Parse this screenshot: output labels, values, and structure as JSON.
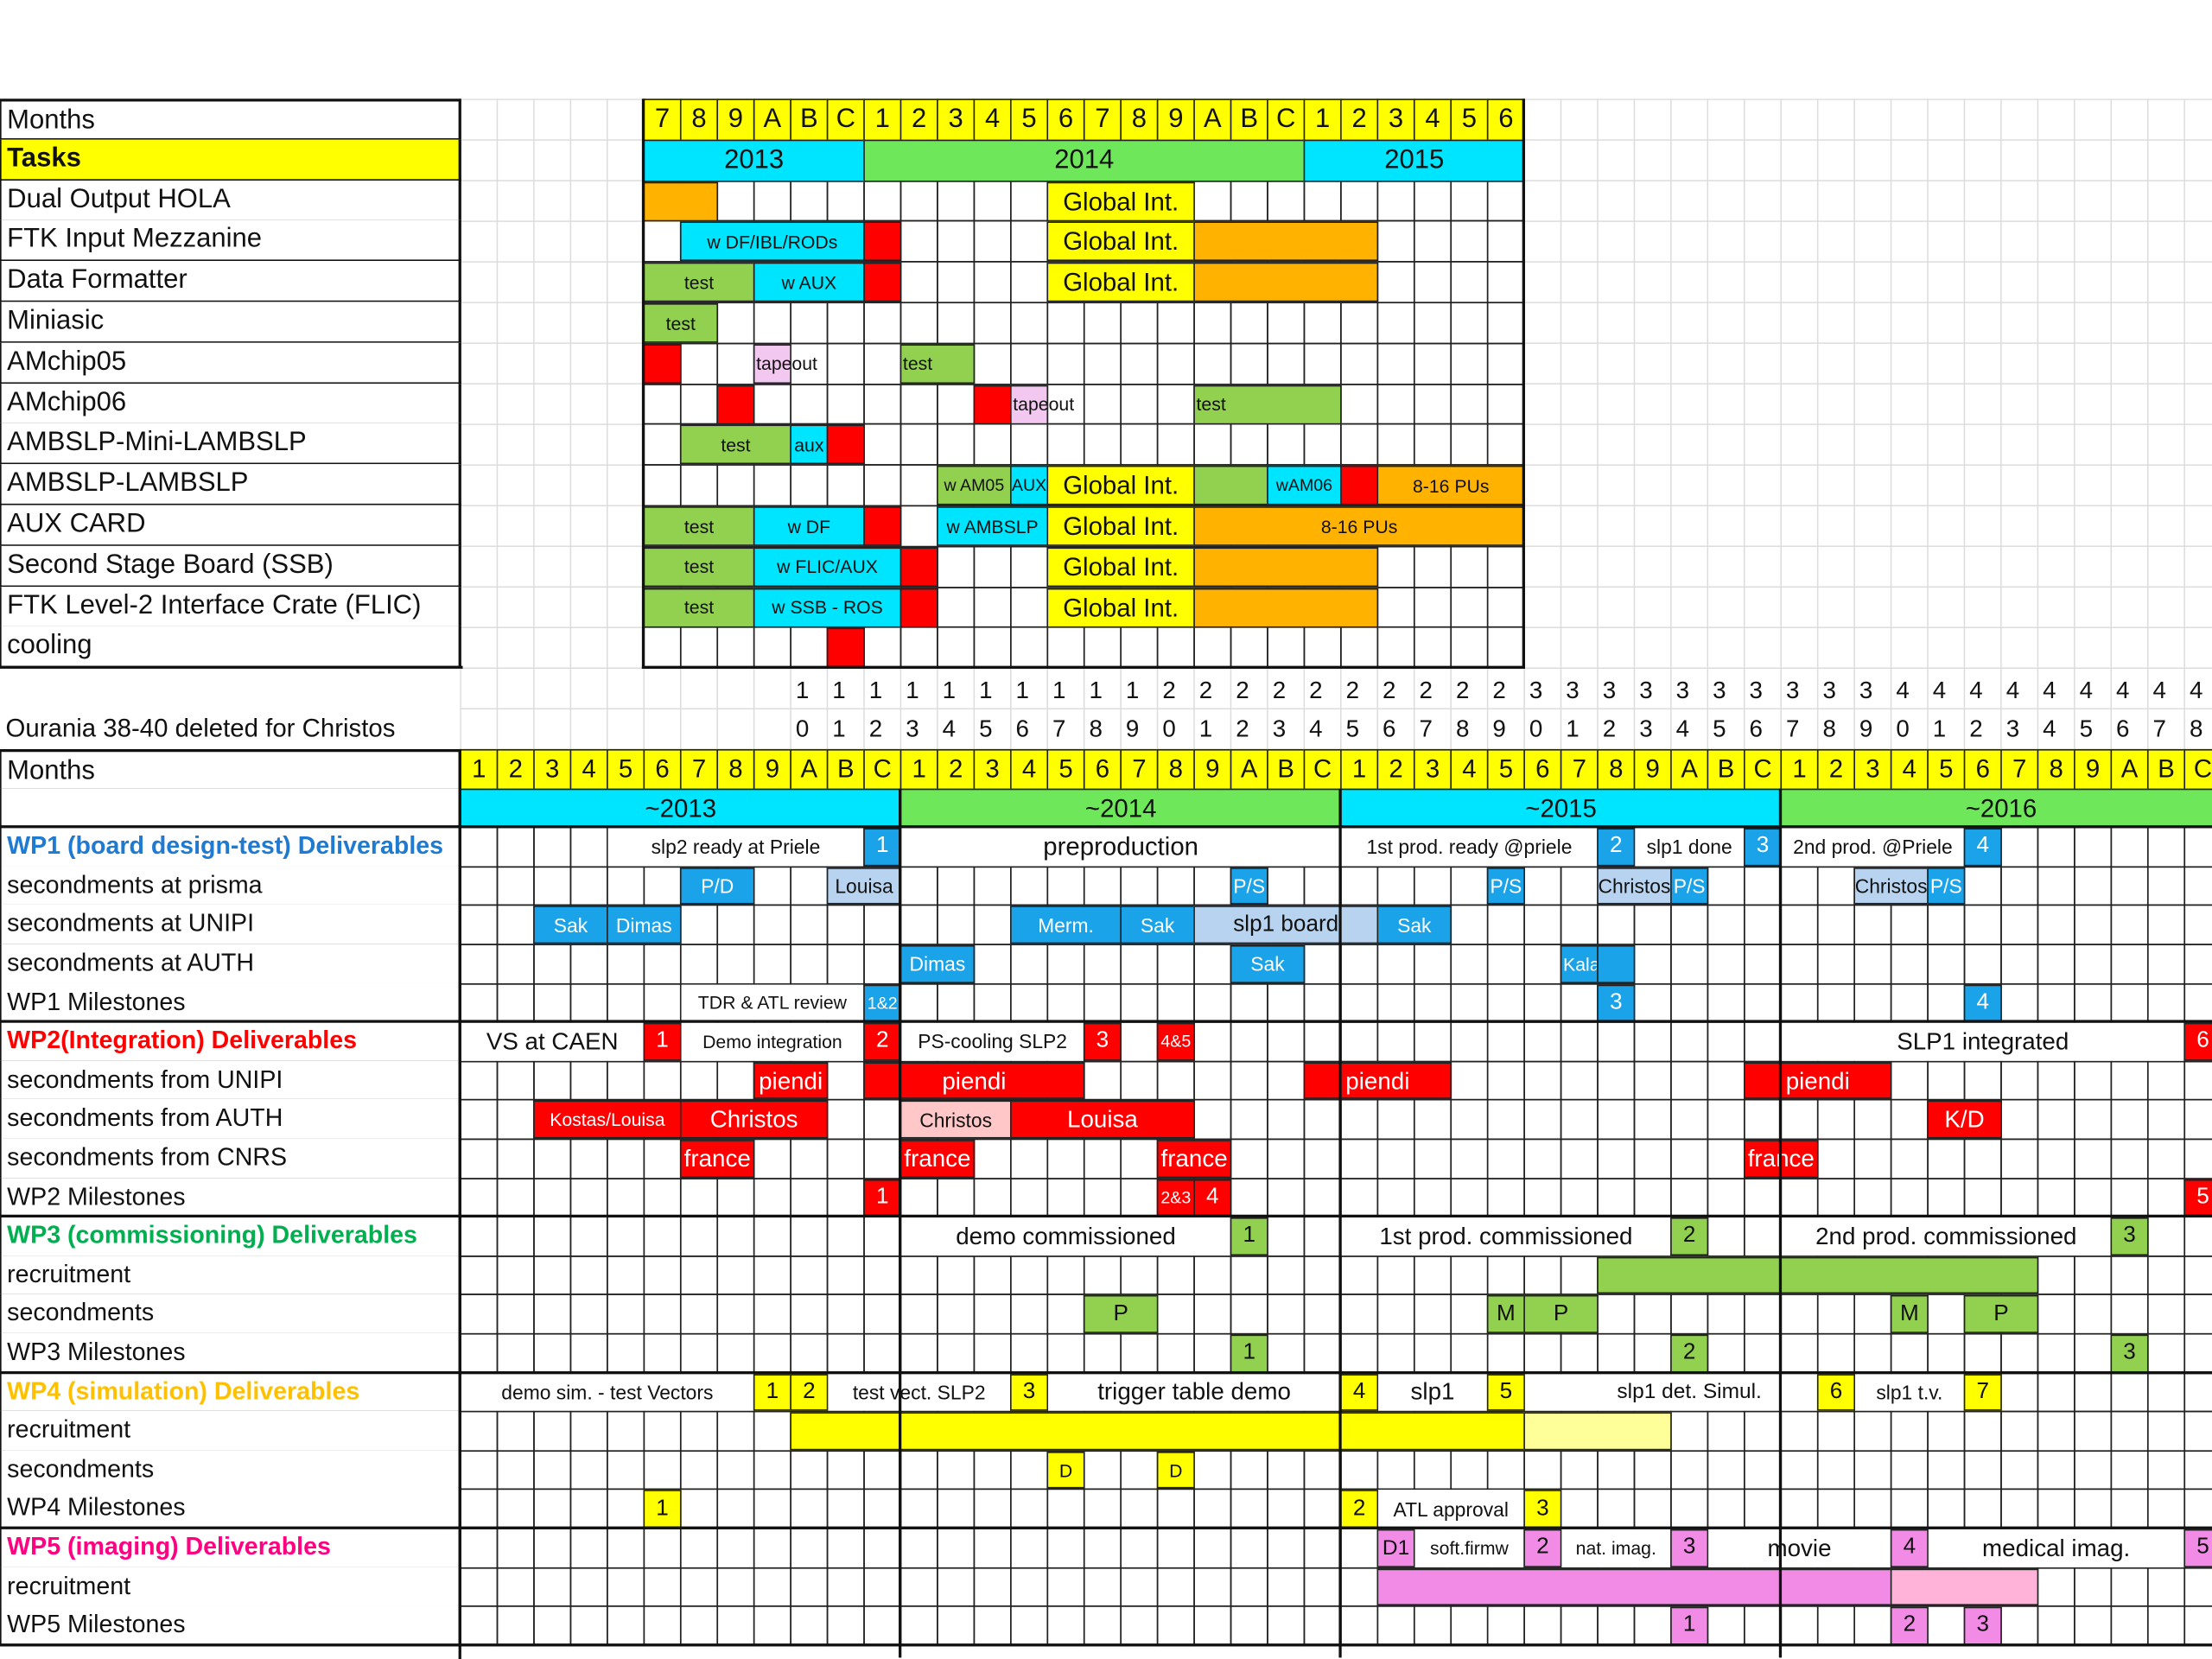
{
  "colors": {
    "yellow": "#ffff00",
    "cyan": "#00e5ff",
    "green": "#6ee85a",
    "orange": "#ffb300",
    "red": "#ff0000",
    "lightgreen": "#92d050",
    "blue": "#1aa3e8",
    "pink": "#f18be6",
    "lightpink": "#ffb3d9",
    "lightblue": "#b7d3f0",
    "paleyellow": "#ffff99",
    "wp1": "#1f7ad1",
    "wp2": "#ff0000",
    "wp3": "#00b050",
    "wp4": "#ffc000",
    "wp5": "#ff0080"
  },
  "top": {
    "months_label": "Months",
    "tasks_label": "Tasks",
    "months": [
      "7",
      "8",
      "9",
      "A",
      "B",
      "C",
      "1",
      "2",
      "3",
      "4",
      "5",
      "6",
      "7",
      "8",
      "9",
      "A",
      "B",
      "C",
      "1",
      "2",
      "3",
      "4",
      "5",
      "6"
    ],
    "years": [
      "2013",
      "2014",
      "2015"
    ],
    "rows": [
      "Dual Output HOLA",
      "FTK Input Mezzanine",
      "Data Formatter",
      "Miniasic",
      "AMchip05",
      "AMchip06",
      "AMBSLP-Mini-LAMBSLP",
      "AMBSLP-LAMBSLP",
      "AUX  CARD",
      "Second Stage Board (SSB)",
      "FTK  Level-2 Interface Crate (FLIC)",
      "cooling"
    ],
    "bars": {
      "global_int": "Global Int.",
      "w_df_ibl": "w DF/IBL/RODs",
      "test": "test",
      "w_aux": "w AUX",
      "tapeout": "tapeout",
      "aux": "aux",
      "w_am05": "w AM05",
      "aux_upper": "AUX",
      "wam06": "wAM06",
      "pus": "8-16 PUs",
      "w_df": "w DF",
      "w_ambslp": "w AMBSLP",
      "w_flic_aux": "w FLIC/AUX",
      "w_ssb_ros": "w SSB - ROS"
    }
  },
  "note": "Ourania 38-40 deleted for Christos",
  "index_numbers": [
    "10",
    "11",
    "12",
    "13",
    "14",
    "15",
    "16",
    "17",
    "18",
    "19",
    "20",
    "21",
    "22",
    "23",
    "24",
    "25",
    "26",
    "27",
    "28",
    "29",
    "30",
    "31",
    "32",
    "33",
    "34",
    "35",
    "36",
    "37",
    "38",
    "39",
    "40",
    "41",
    "42",
    "43",
    "44",
    "45",
    "46",
    "47",
    "48"
  ],
  "bottom": {
    "months_label": "Months",
    "months": [
      "1",
      "2",
      "3",
      "4",
      "5",
      "6",
      "7",
      "8",
      "9",
      "A",
      "B",
      "C",
      "1",
      "2",
      "3",
      "4",
      "5",
      "6",
      "7",
      "8",
      "9",
      "A",
      "B",
      "C",
      "1",
      "2",
      "3",
      "4",
      "5",
      "6",
      "7",
      "8",
      "9",
      "A",
      "B",
      "C",
      "1",
      "2",
      "3",
      "4",
      "5",
      "6",
      "7",
      "8",
      "9",
      "A",
      "B",
      "C"
    ],
    "years": [
      "~2013",
      "~2014",
      "~2015",
      "~2016"
    ],
    "rows": [
      {
        "label": "WP1 (board design-test) Deliverables",
        "kind": "wp1"
      },
      {
        "label": "secondments  at prisma",
        "kind": "plain"
      },
      {
        "label": "secondments  at UNIPI",
        "kind": "plain"
      },
      {
        "label": "secondments at AUTH",
        "kind": "plain"
      },
      {
        "label": "WP1 Milestones",
        "kind": "plain"
      },
      {
        "label": "WP2(Integration)  Deliverables",
        "kind": "wp2"
      },
      {
        "label": "secondments  from UNIPI",
        "kind": "plain"
      },
      {
        "label": "secondments  from AUTH",
        "kind": "plain"
      },
      {
        "label": "secondments  from CNRS",
        "kind": "plain"
      },
      {
        "label": "WP2 Milestones",
        "kind": "plain"
      },
      {
        "label": "WP3 (commissioning) Deliverables",
        "kind": "wp3"
      },
      {
        "label": "recruitment",
        "kind": "plain"
      },
      {
        "label": "secondments",
        "kind": "plain"
      },
      {
        "label": "WP3 Milestones",
        "kind": "plain"
      },
      {
        "label": "WP4 (simulation) Deliverables",
        "kind": "wp4"
      },
      {
        "label": "recruitment",
        "kind": "plain"
      },
      {
        "label": "secondments",
        "kind": "plain"
      },
      {
        "label": "WP4 Milestones",
        "kind": "plain"
      },
      {
        "label": "WP5 (imaging) Deliverables",
        "kind": "wp5"
      },
      {
        "label": "recruitment",
        "kind": "plain"
      },
      {
        "label": "WP5 Milestones",
        "kind": "plain"
      }
    ],
    "text": {
      "slp2_ready": "slp2 ready at Priele",
      "preproduction": "preproduction",
      "first_prod_ready": "1st prod. ready @priele",
      "slp1_done": "slp1 done",
      "second_prod": "2nd prod. @Priele",
      "pd": "P/D",
      "louisa": "Louisa",
      "ps": "P/S",
      "christos": "Christos",
      "sak": "Sak",
      "dimas": "Dimas",
      "merm": "Merm.",
      "slp1_board": "slp1 board",
      "kalaitz": "Kalaitz.",
      "tdr": "TDR & ATL review",
      "one_and": "1&2",
      "vs_caen": "VS at CAEN",
      "demo_integration": "Demo integration",
      "ps_cooling": "PS-cooling SLP2",
      "four_and": "4&5",
      "slp1_integrated": "SLP1 integrated",
      "piendi": "piendi",
      "kostas_louisa": "Kostas/Louisa",
      "france": "france",
      "kd": "K/D",
      "two_and": "2&3",
      "demo_commissioned": "demo commissioned",
      "first_commissioned": "1st prod. commissioned",
      "second_commissioned": "2nd prod. commissioned",
      "p": "P",
      "m": "M",
      "demo_sim": "demo sim. - test Vectors",
      "test_vect": "test vect. SLP2",
      "trigger_table": "trigger table demo",
      "slp1": "slp1",
      "slp1_det": "slp1 det. Simul.",
      "slp1_tv": "slp1 t.v.",
      "d": "D",
      "atl_approval": "ATL approval",
      "d1": "D1",
      "soft_firmw": "soft.firmw",
      "nat_imag": "nat. imag.",
      "movie": "movie",
      "medical_imag": "medical imag.",
      "n1": "1",
      "n2": "2",
      "n3": "3",
      "n4": "4",
      "n5": "5",
      "n6": "6",
      "n7": "7"
    }
  }
}
